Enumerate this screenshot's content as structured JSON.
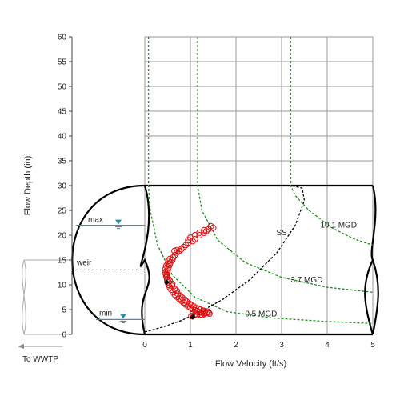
{
  "chart_data": {
    "type": "scatter",
    "xlabel": "Flow Velocity (ft/s)",
    "ylabel": "Flow Depth (in)",
    "xlim": [
      0,
      5
    ],
    "ylim": [
      0,
      60
    ],
    "x_ticks": [
      "0",
      "1",
      "2",
      "3",
      "4",
      "5"
    ],
    "y_ticks": [
      "0",
      "5",
      "10",
      "15",
      "20",
      "25",
      "30",
      "35",
      "40",
      "45",
      "50",
      "55",
      "60"
    ],
    "grid": true,
    "annotations": {
      "max": "max",
      "weir": "weir",
      "min": "min",
      "to_wwtp": "To WWTP",
      "ss": "SS"
    },
    "levels": {
      "max": 22,
      "weir": 13,
      "min": 3
    },
    "iso_flow_curves": [
      {
        "label": "0.5 MGD",
        "label_pos": [
          2.55,
          3.6
        ],
        "points": [
          [
            0.08,
            60
          ],
          [
            0.08,
            30
          ],
          [
            0.12,
            25
          ],
          [
            0.28,
            18
          ],
          [
            0.6,
            12
          ],
          [
            1.1,
            7.5
          ],
          [
            1.8,
            4.6
          ],
          [
            2.8,
            3.3
          ],
          [
            4,
            2.6
          ],
          [
            5,
            2.2
          ]
        ]
      },
      {
        "label": "3.7 MGD",
        "label_pos": [
          3.55,
          10.5
        ],
        "points": [
          [
            1.16,
            60
          ],
          [
            1.16,
            30
          ],
          [
            1.25,
            25
          ],
          [
            1.6,
            19
          ],
          [
            2.2,
            14.5
          ],
          [
            3,
            11.5
          ],
          [
            4,
            9.5
          ],
          [
            5,
            8.5
          ]
        ]
      },
      {
        "label": "10.1 MGD",
        "label_pos": [
          4.25,
          21.5
        ],
        "points": [
          [
            3.2,
            60
          ],
          [
            3.2,
            30
          ],
          [
            3.3,
            28
          ],
          [
            3.6,
            25
          ],
          [
            4.1,
            21.5
          ],
          [
            4.6,
            19.2
          ],
          [
            5,
            18
          ]
        ]
      }
    ],
    "ss_curve": {
      "label": "SS",
      "label_pos": [
        3.0,
        20
      ],
      "points": [
        [
          0,
          0.5
        ],
        [
          0.4,
          1.5
        ],
        [
          0.8,
          2.8
        ],
        [
          1.2,
          4.5
        ],
        [
          1.7,
          7
        ],
        [
          2.3,
          11
        ],
        [
          2.9,
          16.5
        ],
        [
          3.3,
          22
        ],
        [
          3.5,
          27
        ],
        [
          3.45,
          29.5
        ],
        [
          3.2,
          30
        ]
      ]
    },
    "series": [
      {
        "points": [
          [
            1.5,
            21.5
          ],
          [
            1.45,
            21.8
          ],
          [
            1.4,
            21.2
          ],
          [
            1.35,
            20.8
          ],
          [
            1.3,
            20.5
          ],
          [
            1.2,
            20
          ],
          [
            1.1,
            19.2
          ],
          [
            1.05,
            18.8
          ],
          [
            0.95,
            18.5
          ],
          [
            0.9,
            18
          ],
          [
            0.85,
            17.6
          ],
          [
            0.8,
            17.2
          ],
          [
            0.75,
            16.8
          ],
          [
            0.7,
            16.5
          ],
          [
            0.66,
            16
          ],
          [
            0.62,
            15.5
          ],
          [
            0.6,
            15
          ],
          [
            0.56,
            14.5
          ],
          [
            0.54,
            14
          ],
          [
            0.52,
            13.5
          ],
          [
            0.5,
            13
          ],
          [
            0.49,
            12.5
          ],
          [
            0.48,
            12
          ],
          [
            0.48,
            11.5
          ],
          [
            0.49,
            11
          ],
          [
            0.5,
            10.5
          ],
          [
            0.52,
            10
          ],
          [
            0.55,
            9.5
          ],
          [
            0.58,
            9
          ],
          [
            0.62,
            8.5
          ],
          [
            0.66,
            8
          ],
          [
            0.7,
            7.6
          ],
          [
            0.75,
            7.2
          ],
          [
            0.8,
            6.8
          ],
          [
            0.85,
            6.4
          ],
          [
            0.9,
            6
          ],
          [
            0.95,
            5.7
          ],
          [
            1,
            5.4
          ],
          [
            1.05,
            5.1
          ],
          [
            1.1,
            4.9
          ],
          [
            1.15,
            4.7
          ],
          [
            1.2,
            4.5
          ],
          [
            1.25,
            4.4
          ],
          [
            1.3,
            4.3
          ],
          [
            1.35,
            4.3
          ],
          [
            1.3,
            4.1
          ],
          [
            1.22,
            4
          ],
          [
            1.15,
            3.9
          ],
          [
            1.08,
            3.8
          ],
          [
            1.02,
            3.7
          ],
          [
            1.2,
            20.5
          ],
          [
            1.3,
            21
          ],
          [
            1.1,
            20
          ],
          [
            1,
            19.5
          ],
          [
            0.95,
            19
          ],
          [
            0.7,
            17
          ],
          [
            0.65,
            16.8
          ],
          [
            0.55,
            15.2
          ],
          [
            0.52,
            14.8
          ],
          [
            0.5,
            14.2
          ],
          [
            0.47,
            13.8
          ],
          [
            0.45,
            13.2
          ],
          [
            0.45,
            12.6
          ],
          [
            0.46,
            12.2
          ],
          [
            0.47,
            11.8
          ],
          [
            0.52,
            11.2
          ],
          [
            0.55,
            10.8
          ],
          [
            0.6,
            10.2
          ],
          [
            0.6,
            9.8
          ],
          [
            0.65,
            9.2
          ],
          [
            0.7,
            8.8
          ],
          [
            0.72,
            8.2
          ],
          [
            0.78,
            7.8
          ],
          [
            0.82,
            7.4
          ],
          [
            0.88,
            7
          ],
          [
            0.92,
            6.6
          ],
          [
            0.98,
            6.2
          ],
          [
            1.02,
            5.9
          ],
          [
            1.08,
            5.6
          ],
          [
            1.12,
            5.3
          ],
          [
            1.18,
            5.2
          ],
          [
            1.22,
            5
          ],
          [
            1.28,
            4.8
          ],
          [
            1.32,
            4.6
          ],
          [
            1.38,
            4.6
          ],
          [
            1.4,
            4.4
          ],
          [
            1.42,
            4.2
          ],
          [
            1.12,
            4.1
          ],
          [
            1.05,
            4.2
          ],
          [
            1.25,
            3.9
          ]
        ]
      }
    ],
    "markers": [
      {
        "x": 0.48,
        "y": 10.5
      },
      {
        "x": 1.05,
        "y": 3.5
      }
    ]
  }
}
